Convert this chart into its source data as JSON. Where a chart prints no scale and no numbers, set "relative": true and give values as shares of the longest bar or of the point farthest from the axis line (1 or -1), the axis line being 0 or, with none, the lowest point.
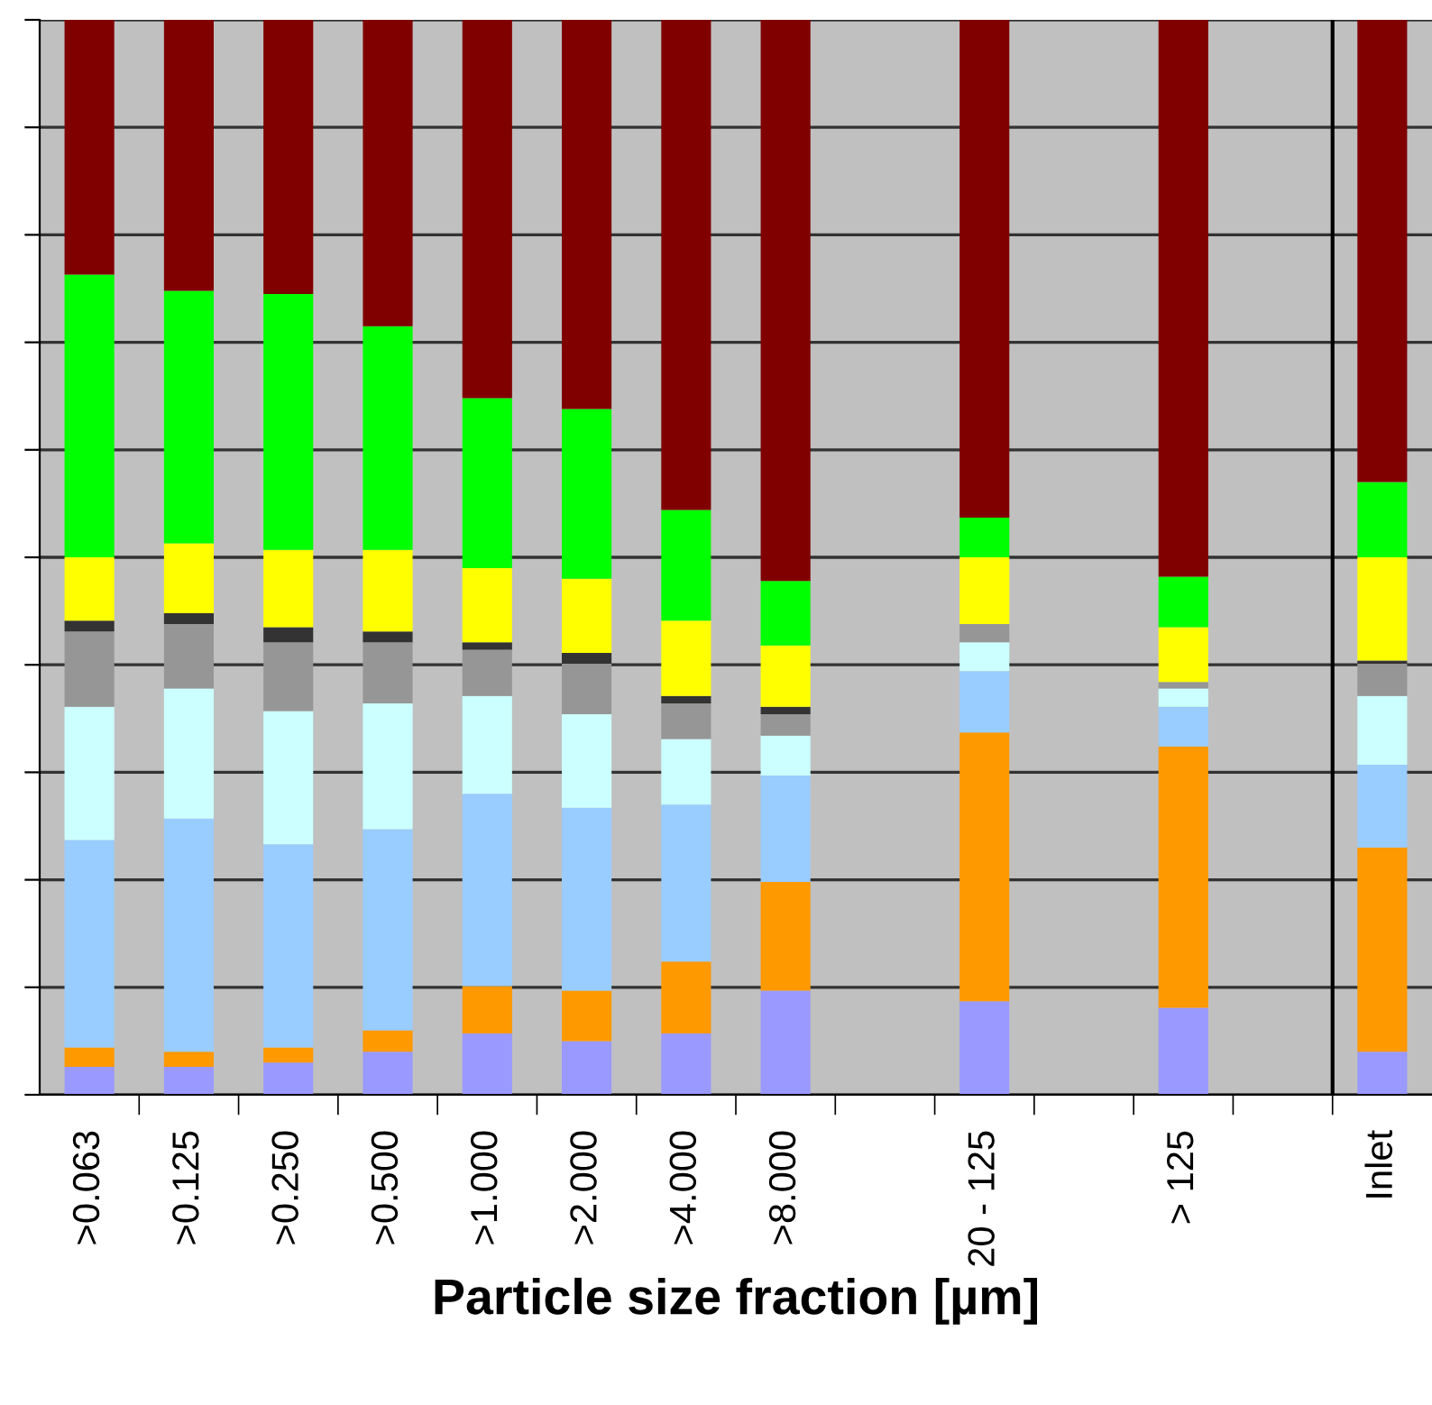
{
  "chart_data": {
    "type": "bar",
    "stacked": true,
    "relative": true,
    "xlabel": "Particle size fraction [µm]",
    "categories": [
      ">0.063",
      ">0.125",
      ">0.250",
      ">0.500",
      ">1.000",
      ">2.000",
      ">4.000",
      ">8.000",
      null,
      "20 - 125",
      null,
      "> 125",
      null,
      "Inlet"
    ],
    "series": [
      {
        "color": "#9999ff",
        "values": [
          0.026,
          0.026,
          0.03,
          0.04,
          0.057,
          0.05,
          0.057,
          0.097,
          null,
          0.087,
          null,
          0.081,
          null,
          0.04
        ]
      },
      {
        "color": "#ff9900",
        "values": [
          0.018,
          0.014,
          0.014,
          0.02,
          0.044,
          0.047,
          0.067,
          0.101,
          null,
          0.25,
          null,
          0.243,
          null,
          0.19
        ]
      },
      {
        "color": "#99ccff",
        "values": [
          0.193,
          0.217,
          0.189,
          0.187,
          0.179,
          0.17,
          0.146,
          0.099,
          null,
          0.057,
          null,
          0.037,
          null,
          0.077
        ]
      },
      {
        "color": "#ccffff",
        "values": [
          0.124,
          0.121,
          0.124,
          0.117,
          0.091,
          0.087,
          0.061,
          0.037,
          null,
          0.027,
          null,
          0.017,
          null,
          0.064
        ]
      },
      {
        "color": "#969696",
        "values": [
          0.07,
          0.06,
          0.064,
          0.057,
          0.043,
          0.047,
          0.033,
          0.02,
          null,
          0.017,
          null,
          0.006,
          null,
          0.03
        ]
      },
      {
        "color": "#333333",
        "values": [
          0.01,
          0.01,
          0.014,
          0.01,
          0.007,
          0.01,
          0.007,
          0.007,
          null,
          0,
          null,
          0,
          null,
          0.003
        ]
      },
      {
        "color": "#ffff00",
        "values": [
          0.059,
          0.065,
          0.072,
          0.076,
          0.069,
          0.069,
          0.07,
          0.057,
          null,
          0.062,
          null,
          0.051,
          null,
          0.096
        ]
      },
      {
        "color": "#00ff00",
        "values": [
          0.263,
          0.235,
          0.238,
          0.208,
          0.158,
          0.158,
          0.103,
          0.06,
          null,
          0.037,
          null,
          0.047,
          null,
          0.07
        ]
      },
      {
        "color": "#800000",
        "values": [
          0.237,
          0.252,
          0.255,
          0.285,
          0.352,
          0.362,
          0.456,
          0.522,
          null,
          0.463,
          null,
          0.518,
          null,
          0.43
        ]
      }
    ],
    "grid": "y",
    "tick_labels": "x"
  }
}
